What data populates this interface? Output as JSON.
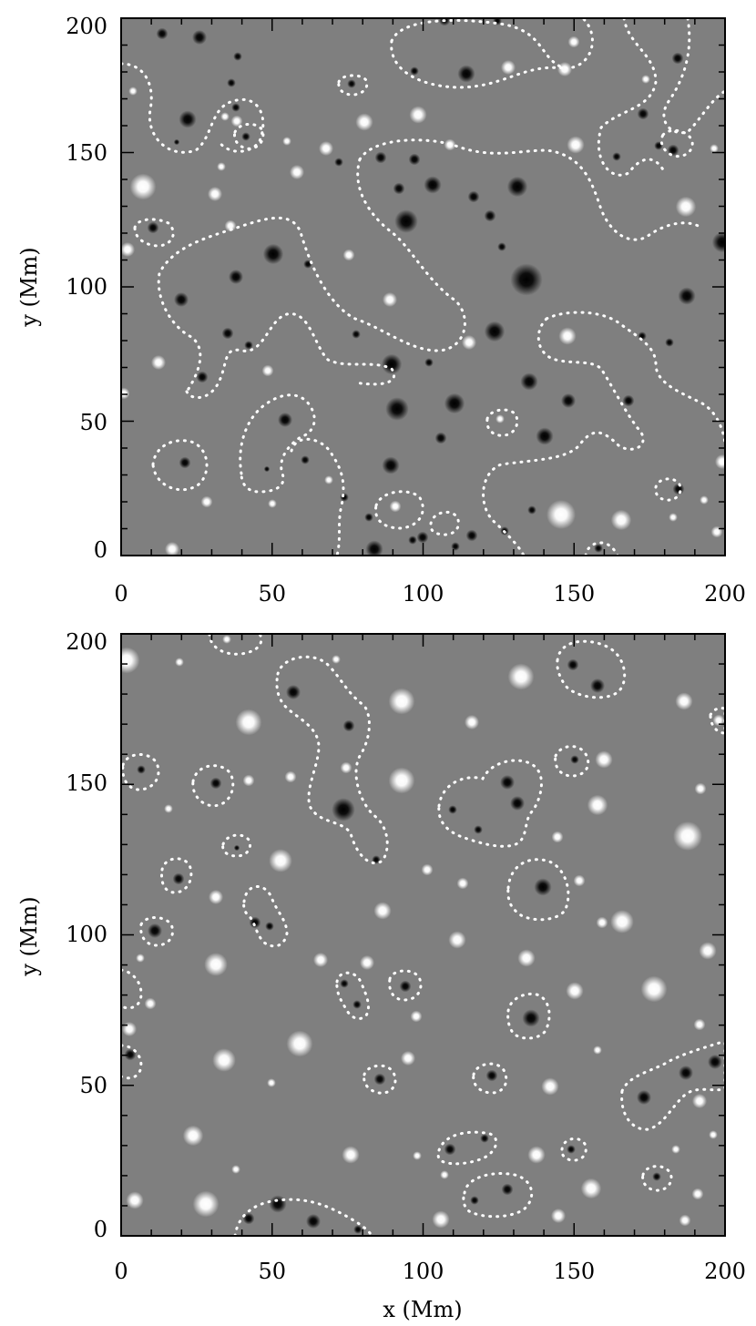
{
  "figure": {
    "x_axis_title": "x   (Mm)",
    "x_ticks": [
      "0",
      "50",
      "100",
      "150",
      "200"
    ],
    "y_ticks": [
      "0",
      "50",
      "100",
      "150",
      "200"
    ],
    "panels": [
      {
        "id": "top",
        "y_axis_title": "y   (Mm)"
      },
      {
        "id": "bottom",
        "y_axis_title": "y   (Mm)"
      }
    ]
  }
}
